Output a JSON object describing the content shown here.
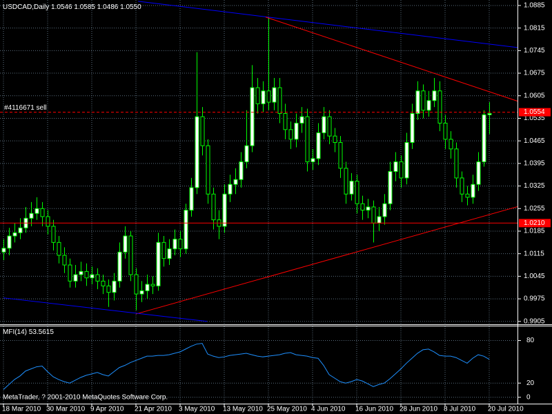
{
  "chart_data": [
    {
      "type": "candlestick",
      "title": "USDCAD,Daily",
      "header_values": [
        "1.0546",
        "1.0585",
        "1.0486",
        "1.0550"
      ],
      "categories": [
        "18 Mar 2010",
        null,
        null,
        null,
        null,
        null,
        null,
        null,
        "30 Mar 2010",
        null,
        null,
        null,
        null,
        null,
        null,
        null,
        "9 Apr 2010",
        null,
        null,
        null,
        null,
        null,
        null,
        null,
        "21 Apr 2010",
        null,
        null,
        null,
        null,
        null,
        null,
        null,
        "3 May 2010",
        null,
        null,
        null,
        null,
        null,
        null,
        null,
        "13 May 2010",
        null,
        null,
        null,
        null,
        null,
        null,
        null,
        "25 May 2010",
        null,
        null,
        null,
        null,
        null,
        null,
        null,
        "4 Jun 2010",
        null,
        null,
        null,
        null,
        null,
        null,
        null,
        "16 Jun 2010",
        null,
        null,
        null,
        null,
        null,
        null,
        null,
        "28 Jun 2010",
        null,
        null,
        null,
        null,
        null,
        null,
        null,
        "8 Jul 2010",
        null,
        null,
        null,
        null,
        null,
        null,
        null,
        "20 Jul 2010"
      ],
      "open": [
        1.012,
        1.0132,
        1.017,
        1.018,
        1.0195,
        1.0225,
        1.024,
        1.0255,
        1.023,
        1.02,
        1.015,
        1.011,
        1.008,
        1.003,
        1.005,
        1.006,
        1.004,
        1.005,
        1.003,
        1.0015,
        0.9995,
        1.003,
        1.012,
        1.017,
        1.005,
        0.999,
        1.0,
        1.002,
        1.0015,
        1.015,
        1.01,
        1.013,
        1.016,
        1.013,
        1.025,
        1.032,
        1.054,
        1.045,
        1.03,
        1.022,
        1.02,
        1.03,
        1.033,
        1.0345,
        1.04,
        1.045,
        1.063,
        1.058,
        1.062,
        1.0585,
        1.063,
        1.055,
        1.05,
        1.047,
        1.052,
        1.054,
        1.04,
        1.041,
        1.049,
        1.054,
        1.048,
        1.046,
        1.038,
        1.03,
        1.034,
        1.027,
        1.025,
        1.026,
        1.021,
        1.023,
        1.027,
        1.037,
        1.04,
        1.035,
        1.046,
        1.055,
        1.062,
        1.056,
        1.059,
        1.062,
        1.052,
        1.047,
        1.044,
        1.035,
        1.03,
        1.029,
        1.033,
        1.04,
        1.0546
      ],
      "high": [
        1.016,
        1.0195,
        1.021,
        1.0225,
        1.026,
        1.0275,
        1.029,
        1.0275,
        1.025,
        1.022,
        1.017,
        1.0135,
        1.01,
        1.008,
        1.009,
        1.0085,
        1.0075,
        1.007,
        1.005,
        1.0035,
        1.0055,
        1.015,
        1.02,
        1.0185,
        1.007,
        1.003,
        1.005,
        1.0045,
        1.018,
        1.017,
        1.016,
        1.019,
        1.0185,
        1.027,
        1.035,
        1.074,
        1.057,
        1.047,
        1.032,
        1.025,
        1.033,
        1.036,
        1.038,
        1.043,
        1.056,
        1.07,
        1.066,
        1.065,
        1.085,
        1.066,
        1.066,
        1.058,
        1.0525,
        1.055,
        1.057,
        1.0565,
        1.044,
        1.052,
        1.057,
        1.056,
        1.0505,
        1.048,
        1.04,
        1.0365,
        1.036,
        1.0295,
        1.0285,
        1.028,
        1.026,
        1.03,
        1.04,
        1.043,
        1.042,
        1.049,
        1.058,
        1.065,
        1.064,
        1.062,
        1.066,
        1.065,
        1.0545,
        1.0495,
        1.046,
        1.037,
        1.0325,
        1.036,
        1.043,
        1.056,
        1.0585
      ],
      "low": [
        1.0095,
        1.011,
        1.015,
        1.016,
        1.018,
        1.02,
        1.022,
        1.02,
        1.0175,
        1.0125,
        1.0085,
        1.0055,
        1.001,
        1.001,
        1.003,
        1.0015,
        1.002,
        1.0005,
        0.999,
        0.995,
        0.997,
        1.001,
        1.01,
        1.003,
        0.994,
        0.9965,
        0.9975,
        0.999,
        1.0,
        1.0075,
        1.008,
        1.011,
        1.0105,
        1.0115,
        1.023,
        1.03,
        1.042,
        1.027,
        1.019,
        1.016,
        1.018,
        1.0275,
        1.03,
        1.032,
        1.038,
        1.043,
        1.055,
        1.0555,
        1.056,
        1.056,
        1.052,
        1.047,
        1.044,
        1.0445,
        1.049,
        1.037,
        1.0375,
        1.039,
        1.047,
        1.0455,
        1.043,
        1.035,
        1.027,
        1.028,
        1.024,
        1.022,
        1.0225,
        1.015,
        1.0185,
        1.0205,
        1.025,
        1.034,
        1.032,
        1.033,
        1.044,
        1.053,
        1.0535,
        1.054,
        1.057,
        1.0495,
        1.044,
        1.041,
        1.032,
        1.0275,
        1.0265,
        1.027,
        1.031,
        1.0385,
        1.0486
      ],
      "close": [
        1.0132,
        1.017,
        1.018,
        1.0195,
        1.0225,
        1.024,
        1.0255,
        1.023,
        1.02,
        1.015,
        1.011,
        1.008,
        1.003,
        1.005,
        1.006,
        1.004,
        1.005,
        1.003,
        1.0015,
        0.9995,
        1.003,
        1.012,
        1.017,
        1.005,
        0.999,
        1.0,
        1.002,
        1.0015,
        1.015,
        1.01,
        1.013,
        1.016,
        1.013,
        1.025,
        1.032,
        1.054,
        1.045,
        1.03,
        1.022,
        1.02,
        1.03,
        1.033,
        1.0345,
        1.04,
        1.045,
        1.063,
        1.058,
        1.062,
        1.0585,
        1.063,
        1.055,
        1.05,
        1.047,
        1.052,
        1.054,
        1.04,
        1.041,
        1.049,
        1.054,
        1.048,
        1.046,
        1.038,
        1.03,
        1.034,
        1.027,
        1.025,
        1.026,
        1.021,
        1.023,
        1.027,
        1.037,
        1.04,
        1.035,
        1.046,
        1.055,
        1.062,
        1.056,
        1.059,
        1.062,
        1.052,
        1.047,
        1.044,
        1.035,
        1.03,
        1.029,
        1.033,
        1.04,
        1.0546,
        1.055
      ],
      "ylim": [
        0.9896,
        1.0902
      ],
      "yticks": [
        0.9905,
        0.9975,
        1.0045,
        1.0115,
        1.0185,
        1.0255,
        1.0325,
        1.0395,
        1.0465,
        1.0535,
        1.0605,
        1.0675,
        1.0745,
        1.0815,
        1.0885
      ],
      "grid": true,
      "grid_color": "#5c6f80",
      "up_color": "#ffffff",
      "down_color": "#000000",
      "wick_color": "#00ff00",
      "hlines": [
        {
          "value": 1.0554,
          "color": "#ff0000",
          "dashed": true,
          "label": "#4116671 sell"
        },
        {
          "value": 1.021,
          "color": "#ff0000",
          "dashed": false,
          "tag_label": "1.0210"
        }
      ],
      "trendlines": [
        {
          "color": "#0000ff",
          "from": [
            24.4,
            1.0898
          ],
          "to": [
            94.4,
            1.0752
          ]
        },
        {
          "color": "#ff0000",
          "from": [
            47.5,
            1.0849
          ],
          "to": [
            94.4,
            1.0581
          ]
        },
        {
          "color": "#ff0000",
          "from": [
            24,
            0.9928
          ],
          "to": [
            94.4,
            1.0267
          ]
        },
        {
          "color": "#0000ff",
          "from": [
            0,
            0.9978
          ],
          "to": [
            36.9,
            0.9905
          ]
        }
      ]
    },
    {
      "type": "line",
      "name": "MFI(14)",
      "color": "#1e90ff",
      "values": [
        11,
        18,
        25,
        30,
        37,
        40,
        43,
        44,
        36,
        29,
        25,
        22,
        20,
        24,
        28,
        31,
        33,
        35,
        32,
        30,
        36,
        42,
        45,
        49,
        52,
        55,
        58,
        58,
        59,
        59,
        60,
        62,
        64,
        68,
        72,
        75,
        76,
        61,
        58,
        56,
        57,
        59,
        60,
        61,
        62,
        60,
        58,
        57,
        58,
        59,
        60,
        62,
        63,
        60,
        59,
        58,
        56,
        55,
        45,
        32,
        27,
        22,
        20,
        22,
        25,
        23,
        19,
        15,
        18,
        20,
        26,
        33,
        40,
        48,
        55,
        62,
        67,
        68,
        64,
        59,
        58,
        58,
        56,
        52,
        48,
        55,
        60,
        58,
        53.5615
      ],
      "ylim": [
        -9,
        100
      ],
      "yticks": [
        0,
        20,
        80
      ],
      "annotation": "MetaTrader, ? 2001-2010 MetaQuotes Software Corp."
    }
  ]
}
